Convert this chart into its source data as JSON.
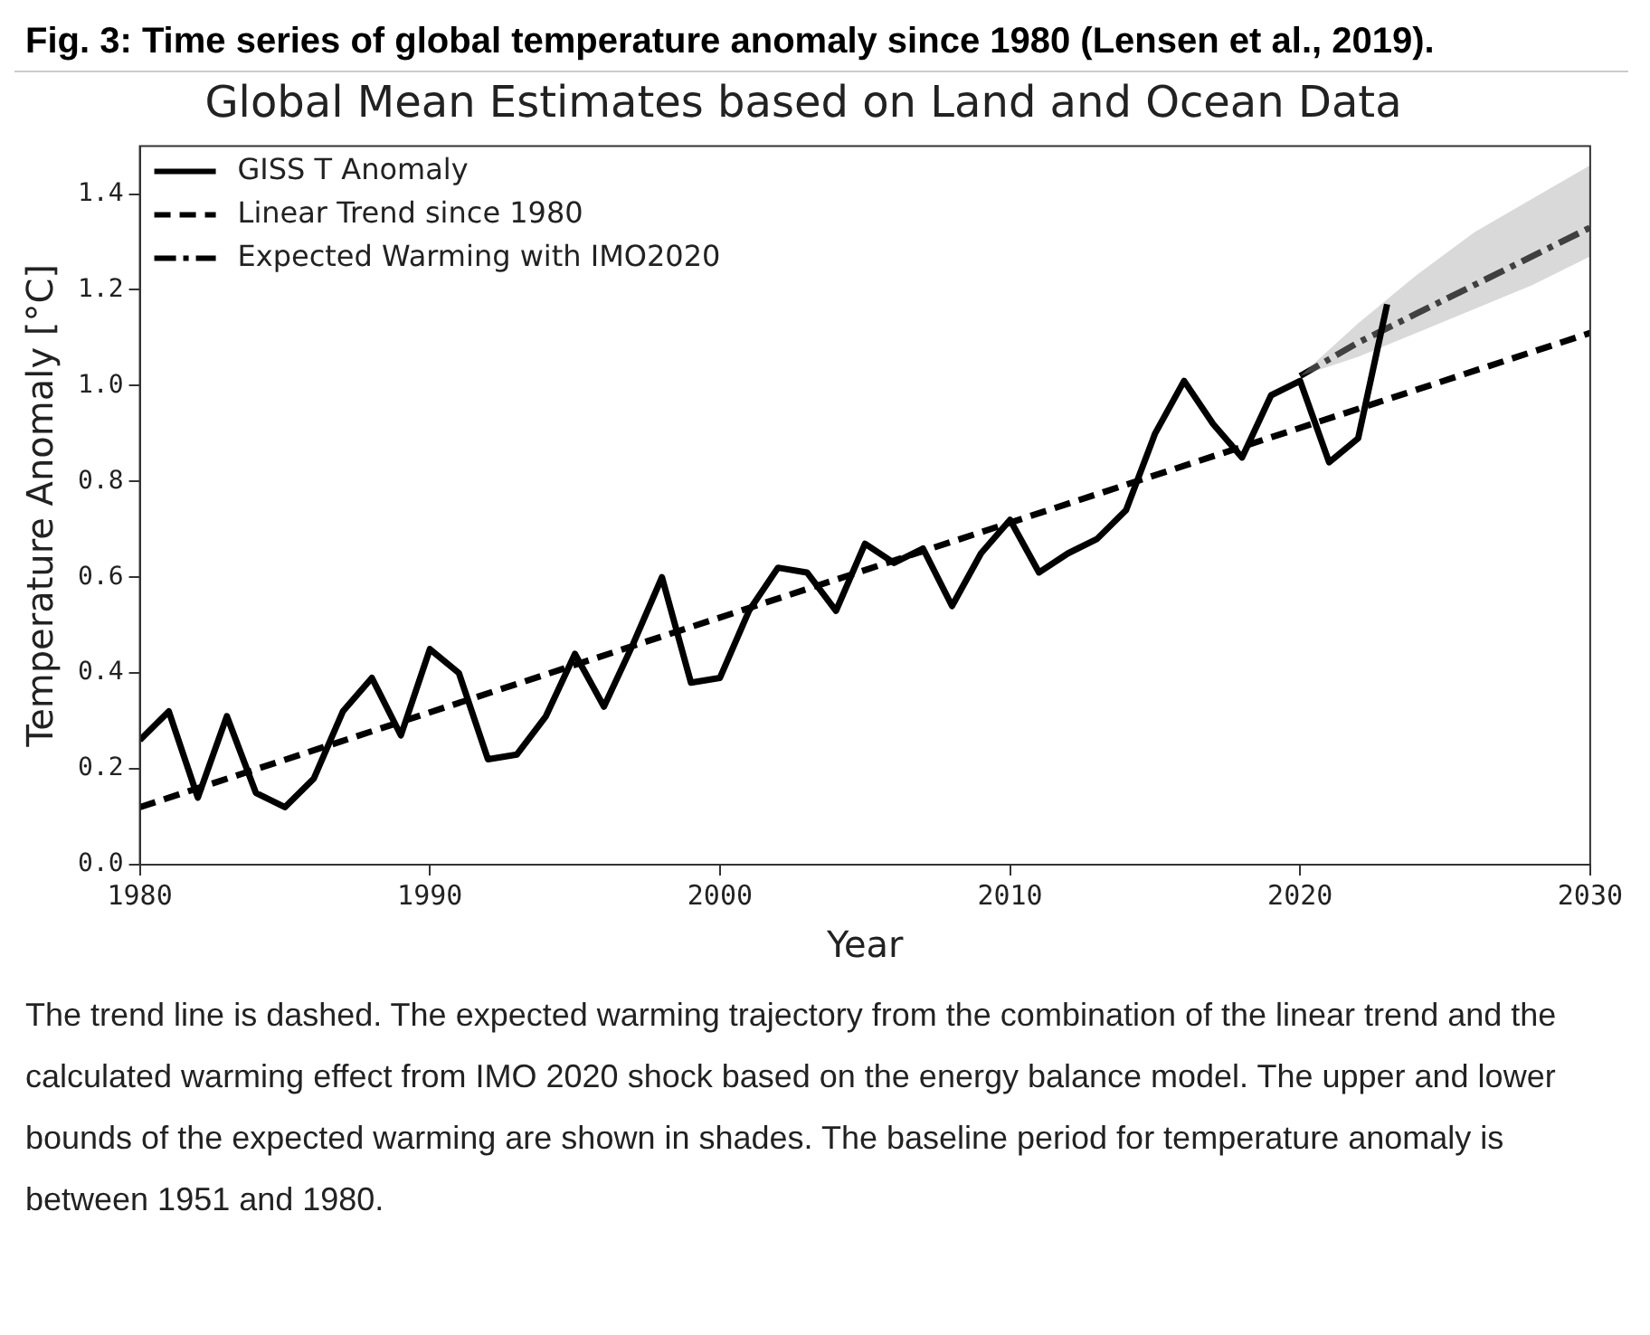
{
  "chart_data": {
    "type": "line",
    "title": "Global Mean Estimates based on Land and Ocean Data",
    "xlabel": "Year",
    "ylabel": "Temperature Anomaly [°C]",
    "annotations": [
      "Fig. 3: Time series of global temperature anomaly since 1980 (Lensen et al., 2019).",
      "The trend line is dashed. The expected warming trajectory from the combination of the linear trend and the calculated warming effect from IMO 2020 shock based on the energy balance model. The upper and lower bounds of the expected warming are shown in shades. The baseline period for temperature anomaly is between 1951 and 1980."
    ],
    "series": [
      {
        "name": "GISS T Anomaly",
        "color": "#000000",
        "line_style": "solid",
        "x": [
          1980,
          1981,
          1982,
          1983,
          1984,
          1985,
          1986,
          1987,
          1988,
          1989,
          1990,
          1991,
          1992,
          1993,
          1994,
          1995,
          1996,
          1997,
          1998,
          1999,
          2000,
          2001,
          2002,
          2003,
          2004,
          2005,
          2006,
          2007,
          2008,
          2009,
          2010,
          2011,
          2012,
          2013,
          2014,
          2015,
          2016,
          2017,
          2018,
          2019,
          2020,
          2021,
          2022,
          2023
        ],
        "values": [
          0.26,
          0.32,
          0.14,
          0.31,
          0.15,
          0.12,
          0.18,
          0.32,
          0.39,
          0.27,
          0.45,
          0.4,
          0.22,
          0.23,
          0.31,
          0.44,
          0.33,
          0.46,
          0.6,
          0.38,
          0.39,
          0.53,
          0.62,
          0.61,
          0.53,
          0.67,
          0.63,
          0.66,
          0.54,
          0.65,
          0.72,
          0.61,
          0.65,
          0.68,
          0.74,
          0.9,
          1.01,
          0.92,
          0.85,
          0.98,
          1.01,
          0.84,
          0.89,
          1.17
        ]
      },
      {
        "name": "Linear Trend since 1980",
        "color": "#000000",
        "line_style": "dashed",
        "x": [
          1980,
          2030
        ],
        "values": [
          0.12,
          1.11
        ]
      },
      {
        "name": "Expected Warming with IMO2020",
        "color": "#000000",
        "line_style": "dashdot",
        "x": [
          2020,
          2022,
          2024,
          2026,
          2028,
          2030
        ],
        "values": [
          1.02,
          1.09,
          1.15,
          1.21,
          1.27,
          1.33
        ],
        "lower": [
          1.02,
          1.06,
          1.11,
          1.16,
          1.21,
          1.27
        ],
        "upper": [
          1.02,
          1.13,
          1.23,
          1.32,
          1.39,
          1.46
        ]
      }
    ],
    "xlim": [
      1980,
      2030
    ],
    "xticks": [
      1980,
      1990,
      2000,
      2010,
      2020,
      2030
    ],
    "ylim": [
      0,
      1.5
    ],
    "yticks": [
      {
        "value": 0,
        "label": "0.0"
      },
      {
        "value": 0.2,
        "label": "0.2"
      },
      {
        "value": 0.4,
        "label": "0.4"
      },
      {
        "value": 0.6,
        "label": "0.6"
      },
      {
        "value": 0.8,
        "label": "0.8"
      },
      {
        "value": 1.0,
        "label": "1.0"
      },
      {
        "value": 1.2,
        "label": "1.2"
      },
      {
        "value": 1.4,
        "label": "1.4"
      }
    ],
    "grid": false,
    "legend": "top left",
    "marker": "none"
  }
}
